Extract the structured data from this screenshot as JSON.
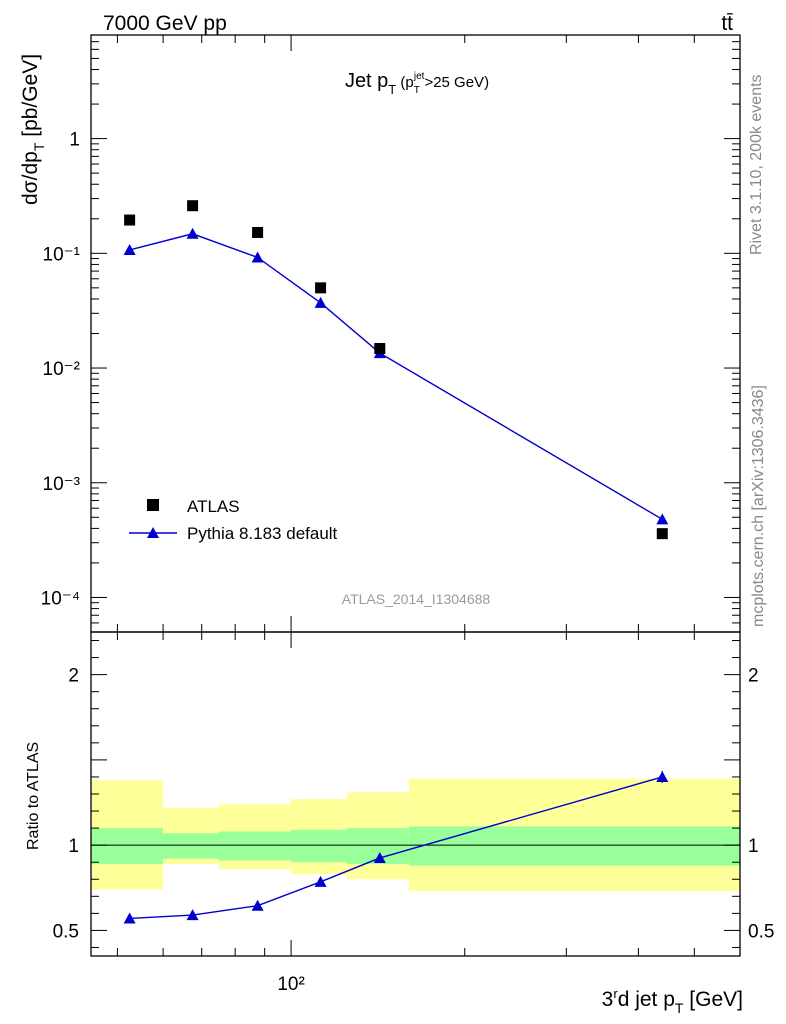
{
  "header": {
    "energy_label": "7000 GeV pp",
    "process_label": "tt̄"
  },
  "side_labels": {
    "rivet": "Rivet 3.1.10,  200k events",
    "mcplots": "mcplots.cern.ch [arXiv:1306.3436]"
  },
  "chart_data": [
    {
      "type": "scatter",
      "title": "Jet pT (pTjet>25 GeV)",
      "ylabel": "dσ/dpT [pb/GeV]",
      "xlabel": "3rd jet pT [GeV]",
      "x_scale": "log",
      "y_scale": "log",
      "xlim": [
        45,
        600
      ],
      "ylim": [
        5e-05,
        8
      ],
      "y_tick_labels": [
        "10⁻⁴",
        "10⁻³",
        "10⁻²",
        "10⁻¹",
        "1"
      ],
      "analysis_label": "ATLAS_2014_I1304688",
      "legend_position": "bottom-left",
      "series": [
        {
          "name": "ATLAS",
          "marker": "square",
          "color": "#000000",
          "x": [
            52.5,
            67.5,
            87.5,
            112.5,
            142.5,
            440
          ],
          "y": [
            0.195,
            0.26,
            0.152,
            0.05,
            0.0148,
            0.00036
          ]
        },
        {
          "name": "Pythia 8.183 default",
          "marker": "triangle",
          "color": "#0000cc",
          "x": [
            52.5,
            67.5,
            87.5,
            112.5,
            142.5,
            440
          ],
          "y": [
            0.107,
            0.148,
            0.092,
            0.037,
            0.0135,
            0.00048
          ]
        }
      ]
    },
    {
      "type": "line",
      "ylabel": "Ratio to ATLAS",
      "x_scale": "log",
      "xlim": [
        45,
        600
      ],
      "ylim": [
        0.35,
        2.25
      ],
      "y_ticks": [
        0.5,
        1,
        2
      ],
      "x_tick_label": "10²",
      "bands": {
        "inner_color": "#99ff99",
        "outer_color": "#ffff99",
        "bins": [
          {
            "x": [
              45,
              60
            ],
            "inner": [
              0.89,
              1.1
            ],
            "outer": [
              0.74,
              1.38
            ]
          },
          {
            "x": [
              60,
              75
            ],
            "inner": [
              0.92,
              1.07
            ],
            "outer": [
              0.89,
              1.22
            ]
          },
          {
            "x": [
              75,
              100
            ],
            "inner": [
              0.91,
              1.08
            ],
            "outer": [
              0.86,
              1.24
            ]
          },
          {
            "x": [
              100,
              125
            ],
            "inner": [
              0.9,
              1.09
            ],
            "outer": [
              0.83,
              1.27
            ]
          },
          {
            "x": [
              125,
              160
            ],
            "inner": [
              0.89,
              1.1
            ],
            "outer": [
              0.8,
              1.31
            ]
          },
          {
            "x": [
              160,
              600
            ],
            "inner": [
              0.88,
              1.11
            ],
            "outer": [
              0.73,
              1.39
            ]
          }
        ]
      },
      "series": [
        {
          "name": "Pythia 8.183 default",
          "color": "#0000cc",
          "x": [
            52.5,
            67.5,
            87.5,
            112.5,
            142.5,
            440
          ],
          "y": [
            0.57,
            0.59,
            0.645,
            0.785,
            0.925,
            1.4
          ],
          "yerr": [
            0.005,
            0.005,
            0.006,
            0.01,
            0.015,
            0.035
          ]
        }
      ]
    }
  ]
}
